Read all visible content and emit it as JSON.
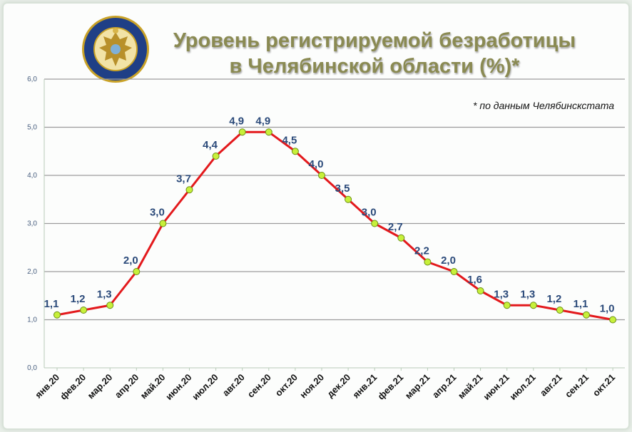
{
  "title": {
    "line1": "Уровень регистрируемой безработицы",
    "line2": "в Челябинской области (%)*"
  },
  "footnote": "* по данным Челябинскстата",
  "emblem": {
    "icon": "double-headed-eagle-emblem",
    "ring_color": "#1f3f86",
    "rim_color": "#c9a227"
  },
  "chart_data": {
    "type": "line",
    "title": "Уровень регистрируемой безработицы в Челябинской области (%)*",
    "categories": [
      "янв.20",
      "фев.20",
      "мар.20",
      "апр.20",
      "май.20",
      "июн.20",
      "июл.20",
      "авг.20",
      "сен.20",
      "окт.20",
      "ноя.20",
      "дек.20",
      "янв.21",
      "фев.21",
      "мар.21",
      "апр.21",
      "май.21",
      "июн.21",
      "июл.21",
      "авг.21",
      "сен.21",
      "окт.21"
    ],
    "values": [
      1.1,
      1.2,
      1.3,
      2.0,
      3.0,
      3.7,
      4.4,
      4.9,
      4.9,
      4.5,
      4.0,
      3.5,
      3.0,
      2.7,
      2.2,
      2.0,
      1.6,
      1.3,
      1.3,
      1.2,
      1.1,
      1.0
    ],
    "data_labels": [
      "1,1",
      "1,2",
      "1,3",
      "2,0",
      "3,0",
      "3,7",
      "4,4",
      "4,9",
      "4,9",
      "4,5",
      "4,0",
      "3,5",
      "3,0",
      "2,7",
      "2,2",
      "2,0",
      "1,6",
      "1,3",
      "1,3",
      "1,2",
      "1,1",
      "1,0"
    ],
    "ylim": [
      0,
      6
    ],
    "yticks": [
      "0,0",
      "1,0",
      "2,0",
      "3,0",
      "4,0",
      "5,0",
      "6,0"
    ],
    "grid": true,
    "colors": {
      "line": "#e3191c",
      "marker": "#c7f03a",
      "marker_edge": "#6b8f16",
      "label": "#2b4a7a",
      "grid": "#9c9c9c",
      "axis_text": "#4a6080"
    }
  }
}
